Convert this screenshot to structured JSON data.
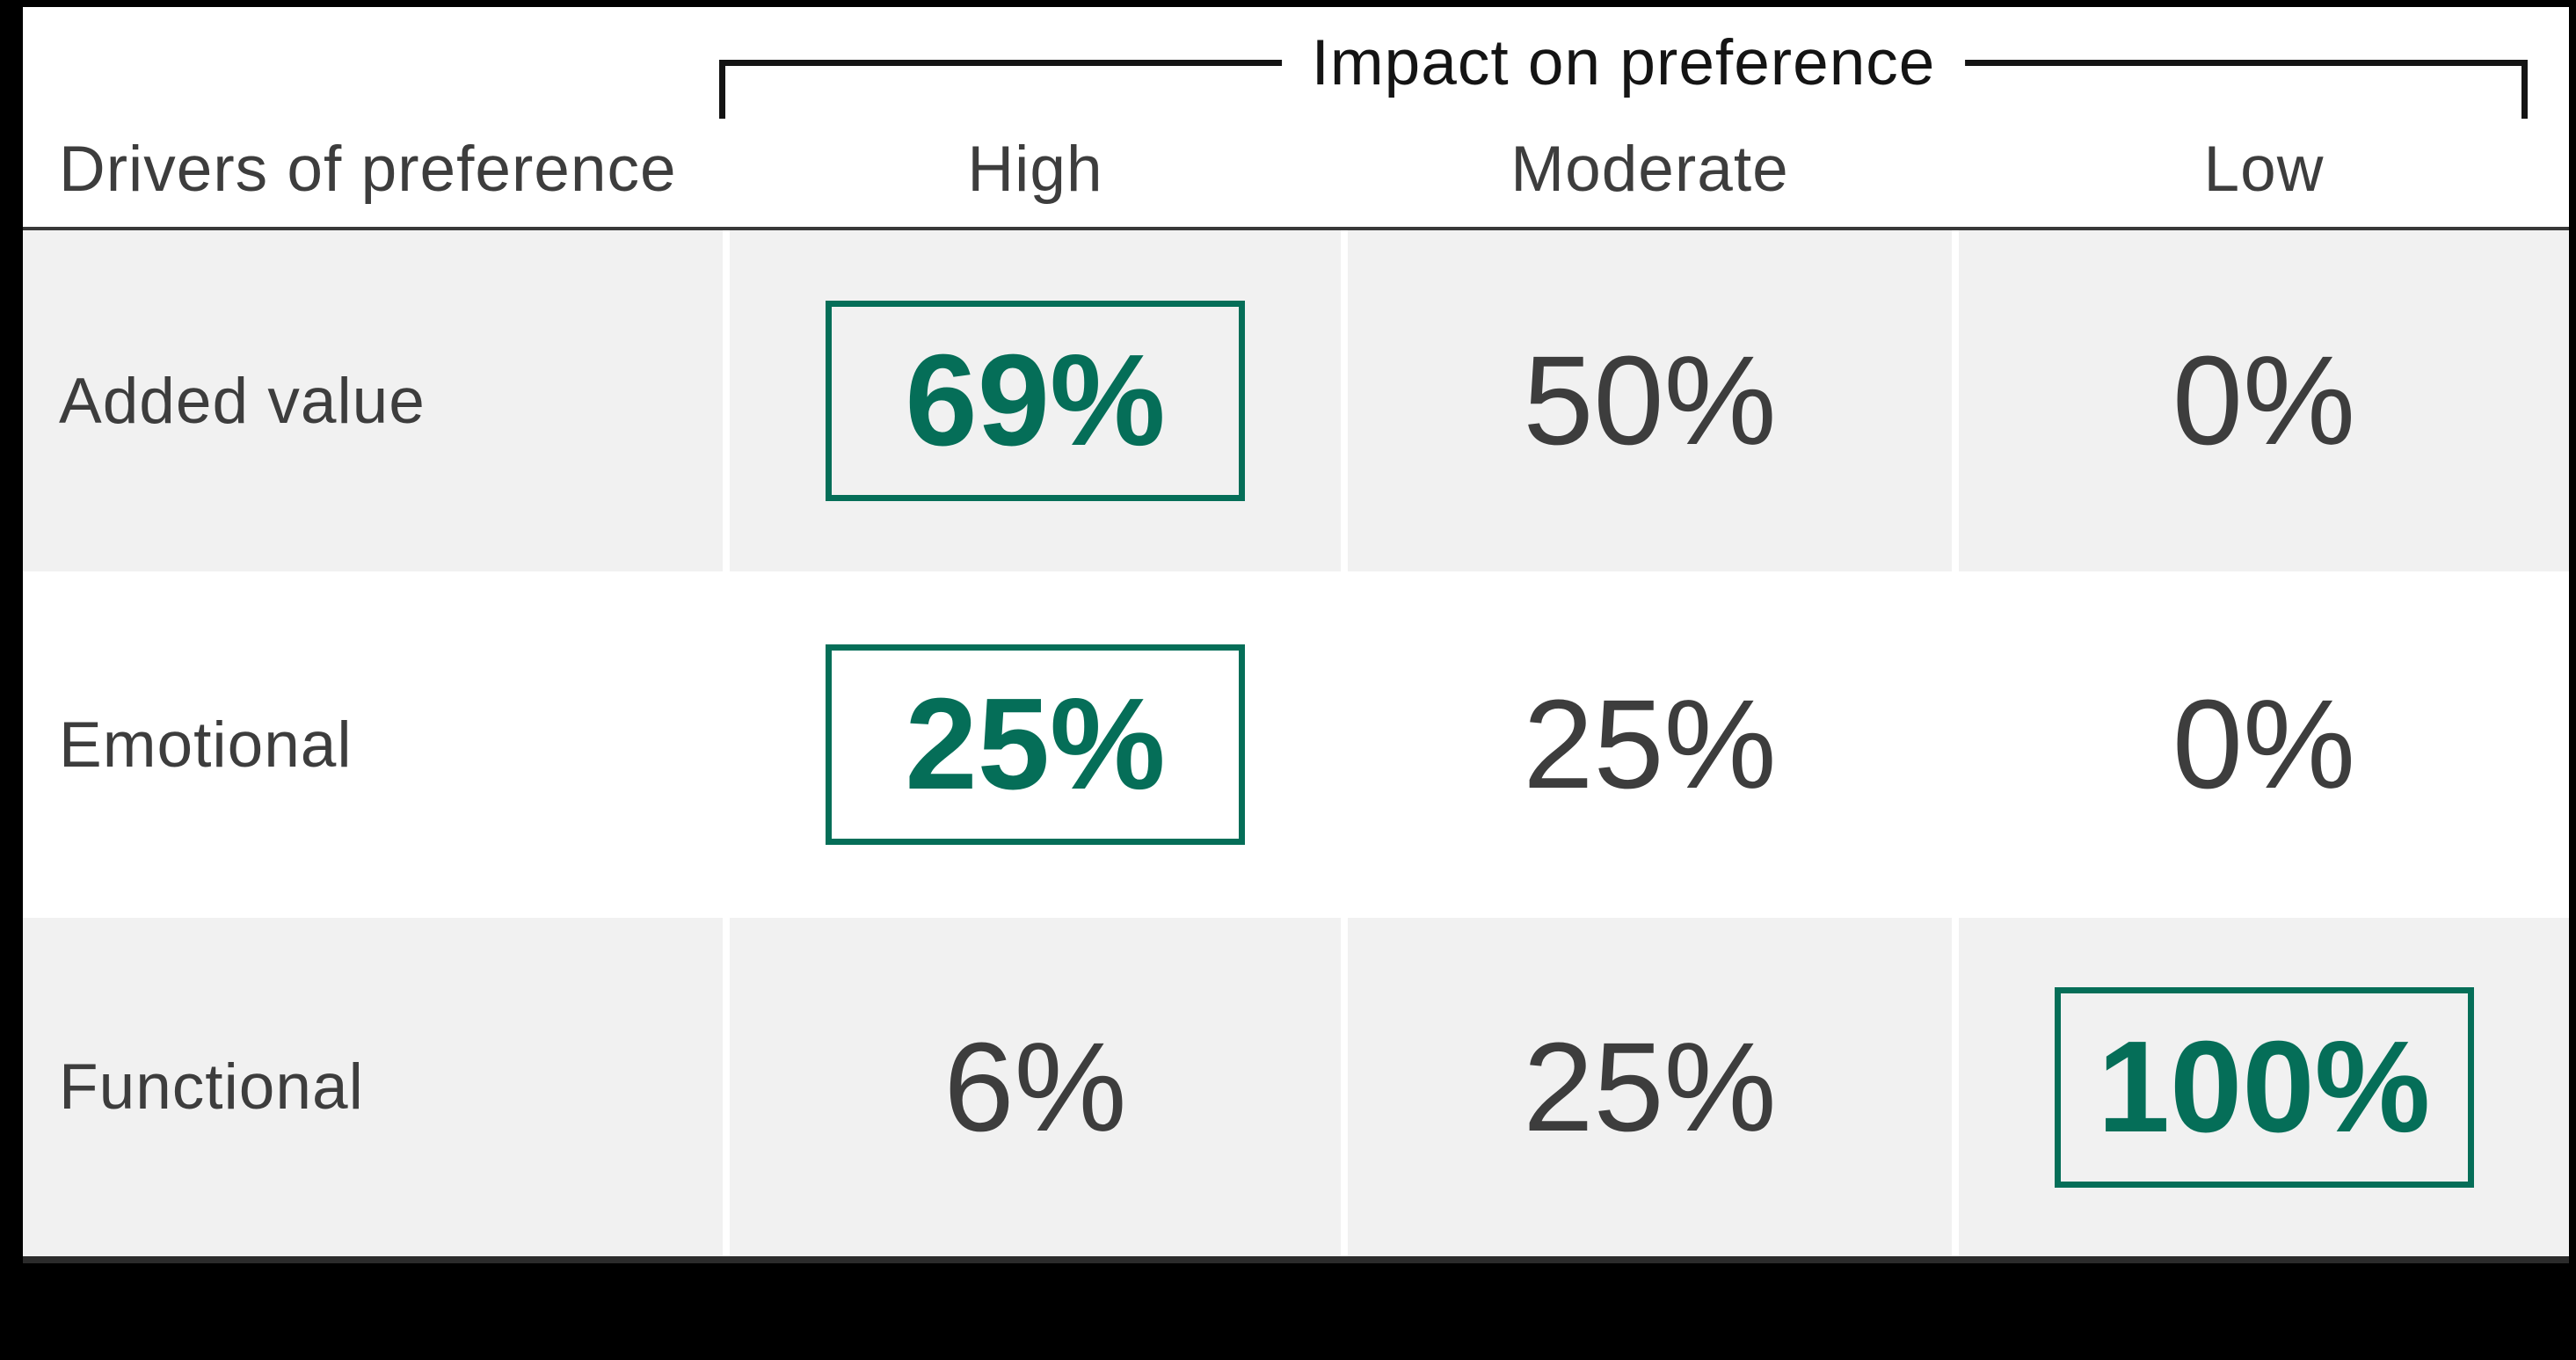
{
  "page": {
    "bg": "#000000"
  },
  "table": {
    "corner_header": "Drivers of preference",
    "impact_header": "Impact on preference",
    "columns": [
      {
        "label": "High"
      },
      {
        "label": "Moderate"
      },
      {
        "label": "Low"
      }
    ],
    "rows": [
      {
        "label": "Added value",
        "shaded": true,
        "values": [
          {
            "text": "69%",
            "highlight": true
          },
          {
            "text": "50%",
            "highlight": false
          },
          {
            "text": "0%",
            "highlight": false
          }
        ]
      },
      {
        "label": "Emotional",
        "shaded": false,
        "values": [
          {
            "text": "25%",
            "highlight": true
          },
          {
            "text": "25%",
            "highlight": false
          },
          {
            "text": "0%",
            "highlight": false
          }
        ]
      },
      {
        "label": "Functional",
        "shaded": true,
        "values": [
          {
            "text": "6%",
            "highlight": false
          },
          {
            "text": "25%",
            "highlight": false
          },
          {
            "text": "100%",
            "highlight": true
          }
        ]
      }
    ],
    "colors": {
      "accent_green": "#056E58",
      "row_shade": "#F1F1F1",
      "text_dark": "#3D3D3D",
      "line_dark": "#383838",
      "bracket_black": "#141414",
      "page_black": "#000000"
    }
  },
  "chart_data": {
    "type": "table",
    "title": "Impact on preference",
    "row_header": "Drivers of preference",
    "columns": [
      "High",
      "Moderate",
      "Low"
    ],
    "rows": [
      "Added value",
      "Emotional",
      "Functional"
    ],
    "values": [
      [
        69,
        50,
        0
      ],
      [
        25,
        25,
        0
      ],
      [
        6,
        25,
        100
      ]
    ],
    "unit": "%",
    "highlighted_cells": [
      {
        "row": "Added value",
        "column": "High",
        "value": 69
      },
      {
        "row": "Emotional",
        "column": "High",
        "value": 25
      },
      {
        "row": "Functional",
        "column": "Low",
        "value": 100
      }
    ],
    "legend_position": "none",
    "grid": false
  }
}
